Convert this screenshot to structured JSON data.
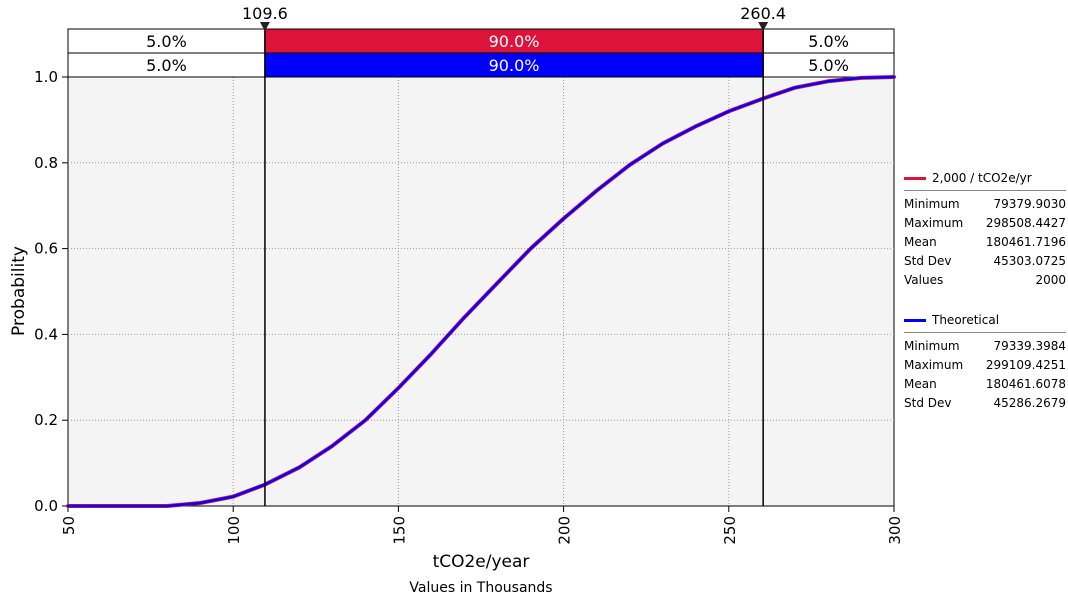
{
  "chart_data": {
    "type": "line",
    "xlabel": "tCO2e/year",
    "xlabel_sub": "Values in Thousands",
    "ylabel": "Probability",
    "xlim": [
      50,
      300
    ],
    "ylim": [
      0,
      1.0
    ],
    "x_ticks": [
      "50",
      "100",
      "150",
      "200",
      "250",
      "300"
    ],
    "y_ticks": [
      "0.0",
      "0.2",
      "0.4",
      "0.6",
      "0.8",
      "1.0"
    ],
    "grid": true,
    "markers": {
      "left": {
        "value": 109.6,
        "label": "109.6"
      },
      "right": {
        "value": 260.4,
        "label": "260.4"
      }
    },
    "bands": [
      {
        "series": "2,000 / tCO2e/yr",
        "color": "#dc143c",
        "left": "5.0%",
        "middle": "90.0%",
        "right": "5.0%"
      },
      {
        "series": "Theoretical",
        "color": "#0000ff",
        "left": "5.0%",
        "middle": "90.0%",
        "right": "5.0%"
      }
    ],
    "x": [
      50,
      80,
      90,
      100,
      109.6,
      120,
      130,
      140,
      150,
      160,
      170,
      180,
      190,
      200,
      210,
      220,
      230,
      240,
      250,
      260.4,
      270,
      280,
      290,
      300
    ],
    "series": [
      {
        "name": "2,000 / tCO2e/yr",
        "color": "#dc143c",
        "values": [
          0.0,
          0.0,
          0.007,
          0.022,
          0.05,
          0.09,
          0.14,
          0.2,
          0.275,
          0.355,
          0.44,
          0.52,
          0.6,
          0.67,
          0.735,
          0.795,
          0.845,
          0.885,
          0.92,
          0.95,
          0.975,
          0.99,
          0.998,
          1.0
        ]
      },
      {
        "name": "Theoretical",
        "color": "#0000ff",
        "values": [
          0.0,
          0.0,
          0.007,
          0.022,
          0.05,
          0.09,
          0.14,
          0.2,
          0.275,
          0.355,
          0.44,
          0.52,
          0.6,
          0.67,
          0.735,
          0.795,
          0.845,
          0.885,
          0.92,
          0.95,
          0.975,
          0.99,
          0.998,
          1.0
        ]
      }
    ],
    "legend_placement": "right"
  },
  "legend": {
    "sample": {
      "name": "2,000 / tCO2e/yr",
      "color": "#dc143c",
      "stats": [
        {
          "label": "Minimum",
          "value": "79379.9030"
        },
        {
          "label": "Maximum",
          "value": "298508.4427"
        },
        {
          "label": "Mean",
          "value": "180461.7196"
        },
        {
          "label": "Std Dev",
          "value": "45303.0725"
        },
        {
          "label": "Values",
          "value": "2000"
        }
      ]
    },
    "theoretical": {
      "name": "Theoretical",
      "color": "#0000ff",
      "stats": [
        {
          "label": "Minimum",
          "value": "79339.3984"
        },
        {
          "label": "Maximum",
          "value": "299109.4251"
        },
        {
          "label": "Mean",
          "value": "180461.6078"
        },
        {
          "label": "Std Dev",
          "value": "45286.2679"
        }
      ]
    }
  }
}
